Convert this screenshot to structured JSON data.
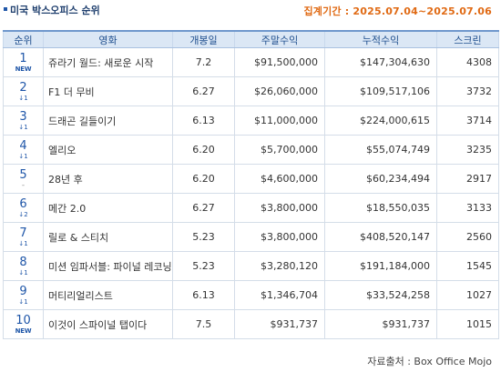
{
  "header": {
    "title": "미국 박스오피스 순위",
    "period": "집계기간 : 2025.07.04~2025.07.06"
  },
  "columns": [
    "순위",
    "영화",
    "개봉일",
    "주말수익",
    "누적수익",
    "스크린"
  ],
  "rows": [
    {
      "rank": "1",
      "change": "NEW",
      "title": "쥬라기 월드: 새로운 시작",
      "open": "7.2",
      "weekend": "$91,500,000",
      "total": "$147,304,630",
      "screens": "4308"
    },
    {
      "rank": "2",
      "change": "↓1",
      "title": "F1 더 무비",
      "open": "6.27",
      "weekend": "$26,060,000",
      "total": "$109,517,106",
      "screens": "3732"
    },
    {
      "rank": "3",
      "change": "↓1",
      "title": "드래곤 길들이기",
      "open": "6.13",
      "weekend": "$11,000,000",
      "total": "$224,000,615",
      "screens": "3714"
    },
    {
      "rank": "4",
      "change": "↓1",
      "title": "엘리오",
      "open": "6.20",
      "weekend": "$5,700,000",
      "total": "$55,074,749",
      "screens": "3235"
    },
    {
      "rank": "5",
      "change": "-",
      "title": "28년 후",
      "open": "6.20",
      "weekend": "$4,600,000",
      "total": "$60,234,494",
      "screens": "2917"
    },
    {
      "rank": "6",
      "change": "↓2",
      "title": "메간 2.0",
      "open": "6.27",
      "weekend": "$3,800,000",
      "total": "$18,550,035",
      "screens": "3133"
    },
    {
      "rank": "7",
      "change": "↓1",
      "title": "릴로 & 스티치",
      "open": "5.23",
      "weekend": "$3,800,000",
      "total": "$408,520,147",
      "screens": "2560"
    },
    {
      "rank": "8",
      "change": "↓1",
      "title": "미션 임파서블: 파이널 레코닝",
      "open": "5.23",
      "weekend": "$3,280,120",
      "total": "$191,184,000",
      "screens": "1545"
    },
    {
      "rank": "9",
      "change": "↓1",
      "title": "머티리얼리스트",
      "open": "6.13",
      "weekend": "$1,346,704",
      "total": "$33,524,258",
      "screens": "1027"
    },
    {
      "rank": "10",
      "change": "NEW",
      "title": "이것이 스파이널 탭이다",
      "open": "7.5",
      "weekend": "$931,737",
      "total": "$931,737",
      "screens": "1015"
    }
  ],
  "footer": "자료출처 : Box Office Mojo",
  "colors": {
    "accent": "#1f56a8",
    "period": "#e06a14",
    "header_bg": "#dbe7f5",
    "border": "#d4dde8"
  }
}
